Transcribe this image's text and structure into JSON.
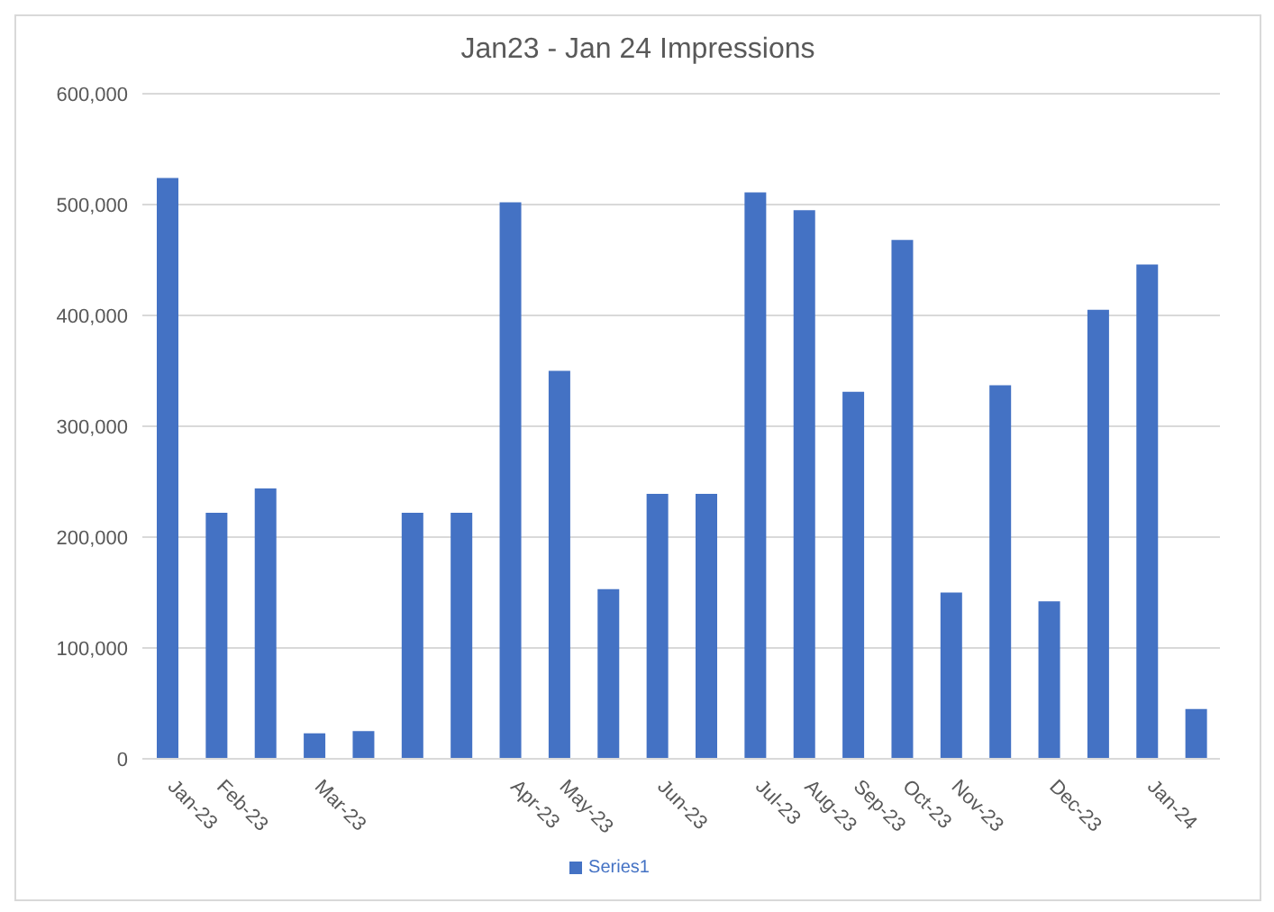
{
  "chart_data": {
    "type": "bar",
    "title": "Jan23 - Jan 24 Impressions",
    "categories": [
      "Jan-23",
      "Feb-23",
      null,
      "Mar-23",
      null,
      null,
      null,
      "Apr-23",
      "May-23",
      null,
      "Jun-23",
      null,
      "Jul-23",
      "Aug-23",
      "Sep-23",
      "Oct-23",
      "Nov-23",
      null,
      "Dec-23",
      null,
      "Jan-24",
      null
    ],
    "series": [
      {
        "name": "Series1",
        "color": "#4472c4",
        "values": [
          524000,
          222000,
          244000,
          23000,
          25000,
          222000,
          222000,
          502000,
          350000,
          153000,
          239000,
          239000,
          511000,
          495000,
          331000,
          468000,
          150000,
          337000,
          142000,
          405000,
          446000,
          45000
        ]
      }
    ],
    "ylim": [
      0,
      600000
    ],
    "yticks": [
      {
        "value": 0,
        "label": "0"
      },
      {
        "value": 100000,
        "label": "100,000"
      },
      {
        "value": 200000,
        "label": "200,000"
      },
      {
        "value": 300000,
        "label": "300,000"
      },
      {
        "value": 400000,
        "label": "400,000"
      },
      {
        "value": 500000,
        "label": "500,000"
      },
      {
        "value": 600000,
        "label": "600,000"
      }
    ],
    "grid": "y",
    "legend": "bottom"
  }
}
